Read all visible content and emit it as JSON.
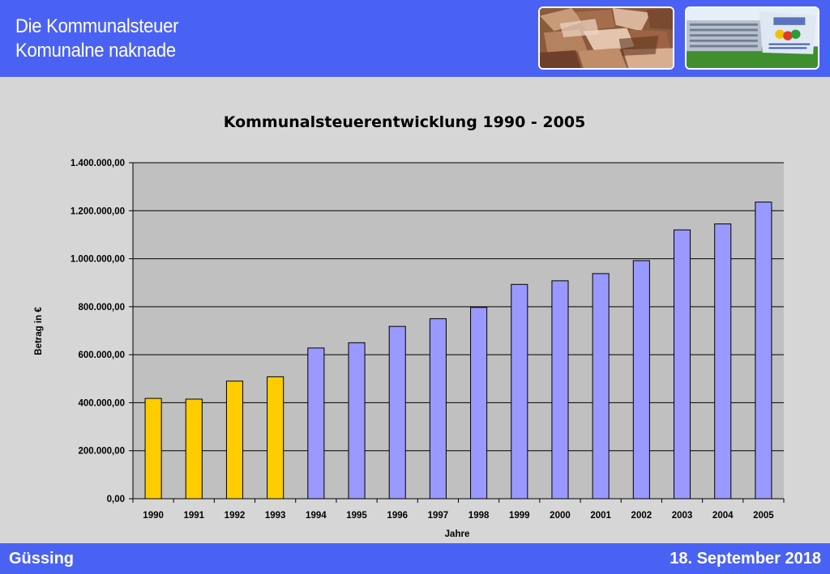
{
  "header": {
    "title_line1": "Die Kommunalsteuer",
    "title_line2": "Komunalne naknade"
  },
  "footer": {
    "location": "Güssing",
    "date": "18. September 2018"
  },
  "colors": {
    "header_bg": "#4a62f4",
    "plot_bg": "#c0c0c0",
    "bar_highlight": "#ffcc00",
    "bar_default": "#9999ff"
  },
  "chart_data": {
    "type": "bar",
    "title": "Kommunalsteuerentwicklung 1990 - 2005",
    "xlabel": "Jahre",
    "ylabel": "Betrag in €",
    "ylim": [
      0,
      1400000
    ],
    "yticks": [
      0,
      200000,
      400000,
      600000,
      800000,
      1000000,
      1200000,
      1400000
    ],
    "ytick_labels": [
      "0,00",
      "200.000,00",
      "400.000,00",
      "600.000,00",
      "800.000,00",
      "1.000.000,00",
      "1.200.000,00",
      "1.400.000,00"
    ],
    "grid": true,
    "legend": "none",
    "categories": [
      "1990",
      "1991",
      "1992",
      "1993",
      "1994",
      "1995",
      "1996",
      "1997",
      "1998",
      "1999",
      "2000",
      "2001",
      "2002",
      "2003",
      "2004",
      "2005"
    ],
    "values": [
      418000,
      415000,
      490000,
      508000,
      628000,
      650000,
      718000,
      750000,
      797000,
      893000,
      908000,
      938000,
      992000,
      1120000,
      1145000,
      1236000
    ],
    "highlighted_categories": [
      "1990",
      "1991",
      "1992",
      "1993"
    ]
  }
}
